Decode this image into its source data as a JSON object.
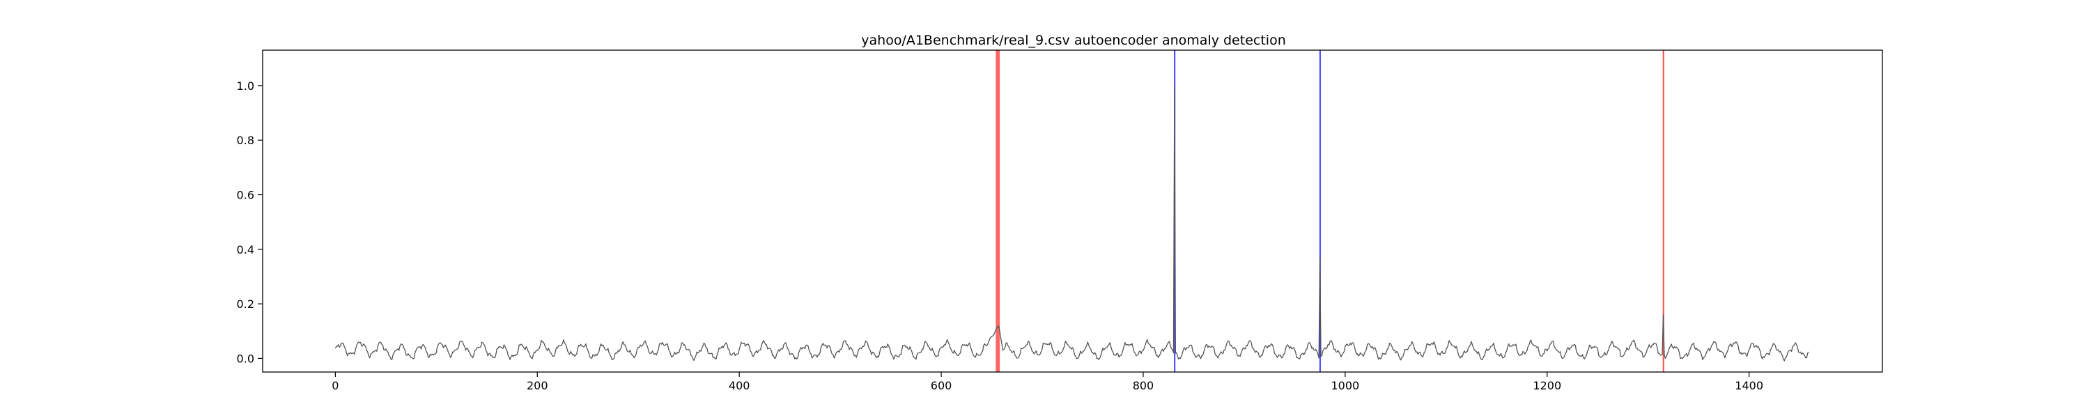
{
  "chart_data": {
    "type": "line",
    "title": "yahoo/A1Benchmark/real_9.csv autoencoder anomaly detection",
    "xlabel": "",
    "ylabel": "",
    "xlim": [
      -72,
      1532
    ],
    "ylim": [
      -0.05,
      1.13
    ],
    "xticks": [
      0,
      200,
      400,
      600,
      800,
      1000,
      1200,
      1400
    ],
    "yticks": [
      0.0,
      0.2,
      0.4,
      0.6,
      0.8,
      1.0
    ],
    "ytick_labels": [
      "0.0",
      "0.2",
      "0.4",
      "0.6",
      "0.8",
      "1.0"
    ],
    "grid": false,
    "series": [
      {
        "color": "#555555",
        "n_points": 1460,
        "baseline": 0.03,
        "amplitude": 0.022,
        "period": 20,
        "shapes": [
          {
            "type": "ramp",
            "start": 645,
            "peak": 657,
            "end": 661,
            "from": 0.05,
            "to": 0.12
          },
          {
            "type": "spike",
            "at": 831,
            "value": 1.0
          },
          {
            "type": "spike",
            "at": 975,
            "value": 0.37
          },
          {
            "type": "spike",
            "at": 1315,
            "value": 0.16
          }
        ]
      }
    ],
    "anomaly_bands": [
      {
        "start": 654,
        "end": 658,
        "color": "#ff0000",
        "opacity": 0.6
      },
      {
        "start": 830.5,
        "end": 831.5,
        "color": "#0000ff",
        "opacity": 0.75
      },
      {
        "start": 974.5,
        "end": 975.5,
        "color": "#0000ff",
        "opacity": 0.75
      },
      {
        "start": 1314.5,
        "end": 1315.5,
        "color": "#ff0000",
        "opacity": 0.7
      }
    ]
  }
}
